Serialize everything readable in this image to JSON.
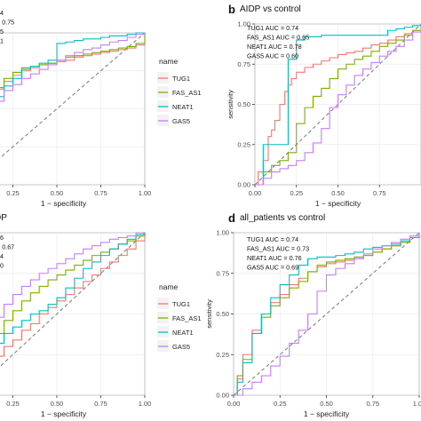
{
  "panels": [
    {
      "letter": "",
      "title": "ontrol",
      "auc_lines": [
        "74",
        "= 0.75",
        "75",
        "71"
      ],
      "xlabel": "1 − specificity",
      "ylabel": "",
      "xticks": [
        "0.25",
        "0.50",
        "0.75",
        "1.00"
      ],
      "yticks": []
    },
    {
      "letter": "b",
      "title": "AIDP vs control",
      "auc_lines": [
        "TUG1 AUC = 0.74",
        "FAS_AS1 AUC = 0.65",
        "NEAT1 AUC = 0.78",
        "GAS5 AUC = 0.60"
      ],
      "xlabel": "1 − specificity",
      "ylabel": "sensitivity",
      "xticks": [
        "0.00",
        "0.25",
        "0.50",
        "0.75"
      ],
      "yticks": [
        "0.00",
        "0.25",
        "0.50",
        "0.75",
        "1.00"
      ]
    },
    {
      "letter": "",
      "title": "DP",
      "auc_lines": [
        "56",
        "= 0.67",
        "64",
        "70"
      ],
      "xlabel": "1 − specificity",
      "ylabel": "",
      "xticks": [
        "0.25",
        "0.50",
        "0.75",
        "1.00"
      ],
      "yticks": []
    },
    {
      "letter": "d",
      "title": "all_patients vs control",
      "auc_lines": [
        "TUG1 AUC = 0.74",
        "FAS_AS1 AUC = 0.73",
        "NEAT1 AUC = 0.76",
        "GAS5 AUC = 0.69"
      ],
      "xlabel": "1 − specificity",
      "ylabel": "sensitivity",
      "xticks": [
        "0.00",
        "0.25",
        "0.50",
        "0.75",
        "1.00"
      ],
      "yticks": [
        "0.00",
        "0.25",
        "0.50",
        "0.75",
        "1.00"
      ]
    }
  ],
  "legend": {
    "title": "name",
    "entries": [
      {
        "label": "TUG1",
        "color": "#F8766D"
      },
      {
        "label": "FAS_AS1",
        "color": "#7CAE00"
      },
      {
        "label": "NEAT1",
        "color": "#00BFC4"
      },
      {
        "label": "GAS5",
        "color": "#C77CFF"
      }
    ]
  },
  "chart_data": [
    {
      "type": "line",
      "xlabel": "1 − specificity",
      "xlim": [
        0,
        1
      ],
      "ylim": [
        0,
        1
      ],
      "diagonal_reference": true,
      "series": [
        {
          "name": "TUG1",
          "color": "#F8766D",
          "x": [
            0,
            0.02,
            0.05,
            0.1,
            0.15,
            0.2,
            0.25,
            0.3,
            0.35,
            0.4,
            0.45,
            0.5,
            0.55,
            0.6,
            0.65,
            0.7,
            0.75,
            0.8,
            0.85,
            0.9,
            0.95,
            1.0
          ],
          "y": [
            0,
            0.36,
            0.45,
            0.55,
            0.63,
            0.68,
            0.72,
            0.75,
            0.77,
            0.79,
            0.8,
            0.81,
            0.82,
            0.84,
            0.85,
            0.86,
            0.87,
            0.88,
            0.89,
            0.9,
            0.92,
            1.0
          ]
        },
        {
          "name": "FAS_AS1",
          "color": "#7CAE00",
          "x": [
            0,
            0.02,
            0.05,
            0.1,
            0.15,
            0.2,
            0.25,
            0.3,
            0.35,
            0.4,
            0.45,
            0.5,
            0.55,
            0.6,
            0.65,
            0.7,
            0.75,
            0.8,
            0.85,
            0.9,
            0.95,
            1.0
          ],
          "y": [
            0,
            0.4,
            0.48,
            0.58,
            0.64,
            0.7,
            0.74,
            0.77,
            0.78,
            0.79,
            0.8,
            0.82,
            0.84,
            0.85,
            0.86,
            0.87,
            0.88,
            0.89,
            0.9,
            0.91,
            0.93,
            1.0
          ]
        },
        {
          "name": "NEAT1",
          "color": "#00BFC4",
          "x": [
            0,
            0.05,
            0.1,
            0.15,
            0.2,
            0.25,
            0.3,
            0.35,
            0.4,
            0.45,
            0.5,
            0.55,
            0.6,
            0.65,
            0.7,
            0.75,
            0.8,
            0.85,
            0.9,
            0.95,
            1.0
          ],
          "y": [
            0,
            0.4,
            0.5,
            0.58,
            0.65,
            0.7,
            0.76,
            0.78,
            0.8,
            0.82,
            0.93,
            0.94,
            0.95,
            0.96,
            0.96,
            0.97,
            0.98,
            0.98,
            0.99,
            1.0,
            1.0
          ]
        },
        {
          "name": "GAS5",
          "color": "#C77CFF",
          "x": [
            0,
            0.05,
            0.1,
            0.15,
            0.2,
            0.25,
            0.3,
            0.35,
            0.4,
            0.45,
            0.5,
            0.55,
            0.6,
            0.65,
            0.7,
            0.75,
            0.8,
            0.85,
            0.9,
            0.95,
            1.0
          ],
          "y": [
            0,
            0.4,
            0.46,
            0.55,
            0.62,
            0.66,
            0.7,
            0.73,
            0.76,
            0.79,
            0.82,
            0.85,
            0.87,
            0.89,
            0.9,
            0.92,
            0.94,
            0.95,
            0.97,
            0.99,
            1.0
          ]
        }
      ]
    },
    {
      "type": "line",
      "title": "AIDP vs control",
      "xlabel": "1 − specificity",
      "ylabel": "sensitivity",
      "xlim": [
        0,
        1
      ],
      "ylim": [
        0,
        1
      ],
      "diagonal_reference": true,
      "series": [
        {
          "name": "TUG1",
          "color": "#F8766D",
          "x": [
            0,
            0.02,
            0.05,
            0.08,
            0.1,
            0.12,
            0.15,
            0.18,
            0.2,
            0.22,
            0.25,
            0.3,
            0.35,
            0.4,
            0.45,
            0.5,
            0.55,
            0.6,
            0.65,
            0.7,
            0.75,
            0.8,
            0.85,
            0.9,
            0.95,
            1.0
          ],
          "y": [
            0,
            0.08,
            0.15,
            0.3,
            0.34,
            0.4,
            0.5,
            0.58,
            0.62,
            0.66,
            0.7,
            0.73,
            0.75,
            0.77,
            0.79,
            0.81,
            0.82,
            0.83,
            0.85,
            0.87,
            0.88,
            0.9,
            0.92,
            0.94,
            0.96,
            1.0
          ]
        },
        {
          "name": "FAS_AS1",
          "color": "#7CAE00",
          "x": [
            0,
            0.05,
            0.1,
            0.15,
            0.2,
            0.25,
            0.3,
            0.35,
            0.4,
            0.45,
            0.5,
            0.55,
            0.6,
            0.65,
            0.7,
            0.75,
            0.8,
            0.85,
            0.9,
            0.95,
            1.0
          ],
          "y": [
            0,
            0.08,
            0.12,
            0.15,
            0.2,
            0.38,
            0.48,
            0.55,
            0.6,
            0.66,
            0.72,
            0.75,
            0.78,
            0.8,
            0.83,
            0.86,
            0.88,
            0.9,
            0.93,
            0.96,
            1.0
          ]
        },
        {
          "name": "NEAT1",
          "color": "#00BFC4",
          "x": [
            0,
            0.05,
            0.05,
            0.1,
            0.15,
            0.2,
            0.2,
            0.25,
            0.3,
            0.4,
            0.5,
            0.6,
            0.7,
            0.75,
            0.8,
            0.85,
            0.9,
            0.95,
            1.0
          ],
          "y": [
            0,
            0,
            0.25,
            0.25,
            0.25,
            0.25,
            0.78,
            0.9,
            0.92,
            0.93,
            0.93,
            0.93,
            0.93,
            0.93,
            0.96,
            0.97,
            0.98,
            0.99,
            1.0
          ]
        },
        {
          "name": "GAS5",
          "color": "#C77CFF",
          "x": [
            0,
            0.05,
            0.1,
            0.15,
            0.2,
            0.25,
            0.3,
            0.35,
            0.4,
            0.45,
            0.5,
            0.55,
            0.6,
            0.65,
            0.7,
            0.75,
            0.8,
            0.85,
            0.9,
            0.95,
            1.0
          ],
          "y": [
            0,
            0.04,
            0.08,
            0.1,
            0.12,
            0.15,
            0.2,
            0.26,
            0.35,
            0.48,
            0.56,
            0.62,
            0.68,
            0.72,
            0.76,
            0.8,
            0.83,
            0.86,
            0.9,
            0.95,
            1.0
          ]
        }
      ]
    },
    {
      "type": "line",
      "xlabel": "1 − specificity",
      "xlim": [
        0,
        1
      ],
      "ylim": [
        0,
        1
      ],
      "diagonal_reference": true,
      "series": [
        {
          "name": "TUG1",
          "color": "#F8766D",
          "x": [
            0,
            0.05,
            0.1,
            0.15,
            0.2,
            0.25,
            0.3,
            0.35,
            0.4,
            0.45,
            0.5,
            0.55,
            0.6,
            0.65,
            0.7,
            0.75,
            0.8,
            0.85,
            0.9,
            0.95,
            1.0
          ],
          "y": [
            0,
            0.12,
            0.18,
            0.24,
            0.3,
            0.34,
            0.4,
            0.44,
            0.5,
            0.54,
            0.58,
            0.62,
            0.66,
            0.7,
            0.74,
            0.78,
            0.82,
            0.86,
            0.9,
            0.95,
            1.0
          ]
        },
        {
          "name": "FAS_AS1",
          "color": "#7CAE00",
          "x": [
            0,
            0.05,
            0.1,
            0.15,
            0.2,
            0.25,
            0.3,
            0.35,
            0.4,
            0.45,
            0.5,
            0.55,
            0.6,
            0.65,
            0.7,
            0.75,
            0.8,
            0.85,
            0.9,
            0.95,
            1.0
          ],
          "y": [
            0,
            0.2,
            0.3,
            0.38,
            0.46,
            0.52,
            0.58,
            0.63,
            0.67,
            0.71,
            0.74,
            0.77,
            0.8,
            0.83,
            0.86,
            0.88,
            0.9,
            0.93,
            0.95,
            0.98,
            1.0
          ]
        },
        {
          "name": "NEAT1",
          "color": "#00BFC4",
          "x": [
            0,
            0.05,
            0.1,
            0.15,
            0.2,
            0.25,
            0.3,
            0.35,
            0.4,
            0.45,
            0.5,
            0.55,
            0.6,
            0.65,
            0.7,
            0.75,
            0.8,
            0.85,
            0.9,
            0.95,
            1.0
          ],
          "y": [
            0,
            0.14,
            0.24,
            0.32,
            0.38,
            0.42,
            0.46,
            0.5,
            0.52,
            0.56,
            0.6,
            0.66,
            0.72,
            0.78,
            0.82,
            0.86,
            0.9,
            0.93,
            0.96,
            0.99,
            1.0
          ]
        },
        {
          "name": "GAS5",
          "color": "#C77CFF",
          "x": [
            0,
            0.05,
            0.1,
            0.15,
            0.2,
            0.25,
            0.3,
            0.35,
            0.4,
            0.45,
            0.5,
            0.55,
            0.6,
            0.65,
            0.7,
            0.75,
            0.8,
            0.85,
            0.9,
            0.95,
            1.0
          ],
          "y": [
            0,
            0.26,
            0.38,
            0.48,
            0.56,
            0.62,
            0.67,
            0.71,
            0.75,
            0.78,
            0.81,
            0.84,
            0.87,
            0.9,
            0.92,
            0.94,
            0.96,
            0.97,
            0.98,
            1.0,
            1.0
          ]
        }
      ]
    },
    {
      "type": "line",
      "title": "all_patients vs control",
      "xlabel": "1 − specificity",
      "ylabel": "sensitivity",
      "xlim": [
        0,
        1
      ],
      "ylim": [
        0,
        1
      ],
      "diagonal_reference": true,
      "series": [
        {
          "name": "TUG1",
          "color": "#F8766D",
          "x": [
            0,
            0.02,
            0.05,
            0.1,
            0.15,
            0.2,
            0.25,
            0.3,
            0.35,
            0.4,
            0.45,
            0.5,
            0.55,
            0.6,
            0.65,
            0.7,
            0.75,
            0.8,
            0.85,
            0.9,
            0.95,
            1.0
          ],
          "y": [
            0,
            0.1,
            0.25,
            0.4,
            0.5,
            0.57,
            0.62,
            0.68,
            0.72,
            0.76,
            0.79,
            0.81,
            0.82,
            0.83,
            0.84,
            0.86,
            0.88,
            0.9,
            0.92,
            0.94,
            0.97,
            1.0
          ]
        },
        {
          "name": "FAS_AS1",
          "color": "#7CAE00",
          "x": [
            0,
            0.02,
            0.05,
            0.1,
            0.15,
            0.2,
            0.25,
            0.3,
            0.35,
            0.4,
            0.45,
            0.5,
            0.55,
            0.6,
            0.65,
            0.7,
            0.75,
            0.8,
            0.85,
            0.9,
            0.95,
            1.0
          ],
          "y": [
            0,
            0.12,
            0.22,
            0.38,
            0.48,
            0.55,
            0.6,
            0.66,
            0.7,
            0.76,
            0.8,
            0.82,
            0.83,
            0.84,
            0.85,
            0.86,
            0.88,
            0.9,
            0.92,
            0.94,
            0.97,
            1.0
          ]
        },
        {
          "name": "NEAT1",
          "color": "#00BFC4",
          "x": [
            0,
            0.02,
            0.05,
            0.1,
            0.15,
            0.2,
            0.25,
            0.3,
            0.35,
            0.4,
            0.45,
            0.5,
            0.55,
            0.6,
            0.65,
            0.7,
            0.75,
            0.8,
            0.85,
            0.9,
            0.95,
            1.0
          ],
          "y": [
            0,
            0.08,
            0.2,
            0.38,
            0.5,
            0.6,
            0.68,
            0.74,
            0.8,
            0.84,
            0.85,
            0.85,
            0.86,
            0.87,
            0.88,
            0.9,
            0.91,
            0.92,
            0.93,
            0.95,
            0.97,
            1.0
          ]
        },
        {
          "name": "GAS5",
          "color": "#C77CFF",
          "x": [
            0,
            0.05,
            0.1,
            0.15,
            0.2,
            0.25,
            0.3,
            0.35,
            0.4,
            0.45,
            0.5,
            0.55,
            0.6,
            0.65,
            0.7,
            0.75,
            0.8,
            0.85,
            0.9,
            0.95,
            1.0
          ],
          "y": [
            0,
            0.04,
            0.08,
            0.12,
            0.18,
            0.24,
            0.32,
            0.4,
            0.5,
            0.64,
            0.74,
            0.78,
            0.81,
            0.84,
            0.87,
            0.9,
            0.92,
            0.94,
            0.96,
            0.98,
            1.0
          ]
        }
      ]
    }
  ]
}
